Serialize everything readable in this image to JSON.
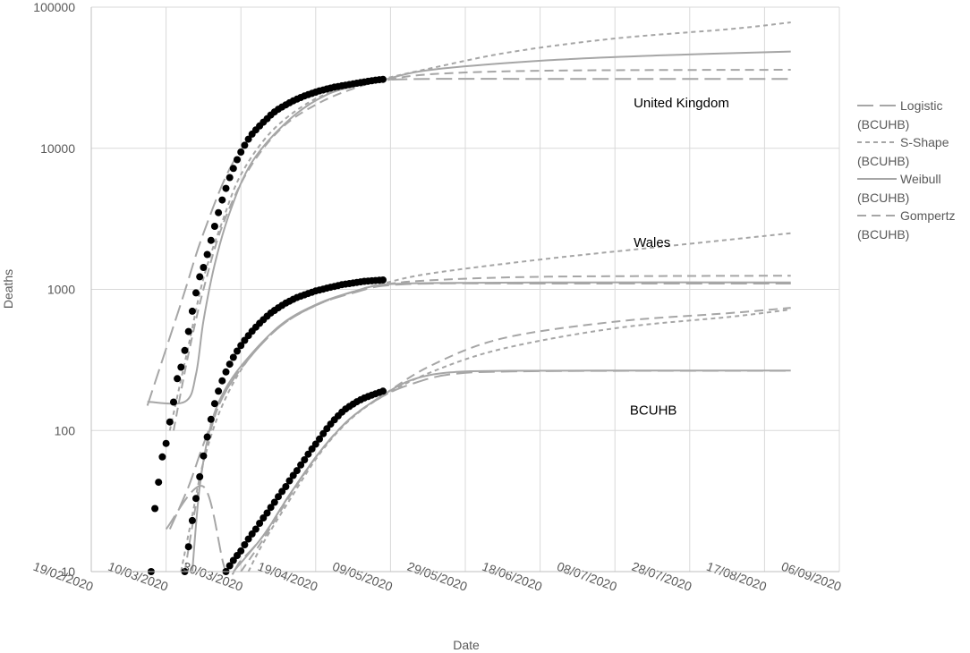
{
  "chart_data": {
    "type": "line",
    "xlabel": "Date",
    "ylabel": "Deaths",
    "yscale": "log",
    "ylim": [
      10,
      100000
    ],
    "xlim": [
      "19/02/2020",
      "06/09/2020"
    ],
    "x_ticks": [
      "19/02/2020",
      "10/03/2020",
      "30/03/2020",
      "19/04/2020",
      "09/05/2020",
      "29/05/2020",
      "18/06/2020",
      "08/07/2020",
      "28/07/2020",
      "17/08/2020",
      "06/09/2020"
    ],
    "y_ticks": [
      "10",
      "100",
      "1000",
      "10000",
      "100000"
    ],
    "grid": true,
    "legend_position": "right",
    "legend": [
      {
        "label": "Logistic",
        "sub": "(BCUHB)",
        "style": "long-dash"
      },
      {
        "label": "S-Shape",
        "sub": "(BCUHB)",
        "style": "short-dash"
      },
      {
        "label": "Weibull",
        "sub": "(BCUHB)",
        "style": "solid"
      },
      {
        "label": "Gompertz",
        "sub": "(BCUHB)",
        "style": "dash"
      }
    ],
    "annotations": [
      {
        "text": "United Kingdom",
        "x": "13/07/2020",
        "y": 19500
      },
      {
        "text": "Wales",
        "x": "13/07/2020",
        "y": 2000
      },
      {
        "text": "BCUHB",
        "x": "12/07/2020",
        "y": 130
      }
    ],
    "observed": [
      {
        "group": "United Kingdom",
        "start": "06/03/2020",
        "end": "07/05/2020",
        "values": [
          10,
          28,
          43,
          65,
          81,
          115,
          159,
          233,
          281,
          369,
          503,
          700,
          944,
          1228,
          1430,
          1768,
          2224,
          2800,
          3500,
          4300,
          5200,
          6200,
          7200,
          8300,
          9400,
          10500,
          11600,
          12600,
          13500,
          14400,
          15300,
          16200,
          17200,
          18100,
          18900,
          19600,
          20300,
          21000,
          21700,
          22300,
          22900,
          23500,
          24000,
          24500,
          25000,
          25500,
          25900,
          26300,
          26700,
          27100,
          27400,
          27700,
          28000,
          28300,
          28600,
          28900,
          29200,
          29500,
          29800,
          30100,
          30400,
          30600,
          30800
        ]
      },
      {
        "group": "Wales",
        "start": "15/03/2020",
        "end": "07/05/2020",
        "values": [
          10,
          15,
          23,
          33,
          47,
          66,
          90,
          120,
          155,
          190,
          225,
          260,
          295,
          330,
          365,
          400,
          435,
          470,
          505,
          540,
          575,
          610,
          645,
          680,
          710,
          740,
          770,
          800,
          825,
          850,
          875,
          895,
          915,
          935,
          955,
          975,
          990,
          1005,
          1020,
          1035,
          1050,
          1065,
          1080,
          1090,
          1100,
          1110,
          1120,
          1130,
          1140,
          1145,
          1150,
          1155,
          1160,
          1165
        ]
      },
      {
        "group": "BCUHB",
        "start": "26/03/2020",
        "end": "07/05/2020",
        "values": [
          10,
          11,
          12,
          13,
          14,
          15.5,
          17,
          18.5,
          20,
          22,
          24,
          26,
          28.5,
          31,
          34,
          37,
          40,
          44,
          48,
          52,
          57,
          62,
          68,
          74,
          80,
          87,
          95,
          103,
          111,
          119,
          127,
          135,
          142,
          148,
          154,
          160,
          165,
          170,
          174,
          178,
          182,
          186,
          190
        ]
      }
    ],
    "fits": {
      "United Kingdom": {
        "Logistic": [
          [
            "05/03/2020",
            150
          ],
          [
            "14/03/2020",
            800
          ],
          [
            "20/03/2020",
            2500
          ],
          [
            "28/03/2020",
            8000
          ],
          [
            "07/04/2020",
            17000
          ],
          [
            "17/04/2020",
            25000
          ],
          [
            "27/04/2020",
            29000
          ],
          [
            "07/05/2020",
            30500
          ],
          [
            "20/05/2020",
            31000
          ],
          [
            "20/06/2020",
            31000
          ],
          [
            "24/08/2020",
            31000
          ]
        ],
        "S-Shape": [
          [
            "11/03/2020",
            100
          ],
          [
            "16/03/2020",
            400
          ],
          [
            "20/03/2020",
            1200
          ],
          [
            "25/03/2020",
            3000
          ],
          [
            "30/03/2020",
            6500
          ],
          [
            "07/04/2020",
            13000
          ],
          [
            "17/04/2020",
            21000
          ],
          [
            "27/04/2020",
            27000
          ],
          [
            "07/05/2020",
            31000
          ],
          [
            "20/05/2020",
            37000
          ],
          [
            "10/06/2020",
            48000
          ],
          [
            "08/07/2020",
            60000
          ],
          [
            "08/08/2020",
            70000
          ],
          [
            "24/08/2020",
            78000
          ]
        ],
        "Weibull": [
          [
            "05/03/2020",
            160
          ],
          [
            "15/03/2020",
            160
          ],
          [
            "18/03/2020",
            250
          ],
          [
            "20/03/2020",
            600
          ],
          [
            "23/03/2020",
            1500
          ],
          [
            "27/03/2020",
            3500
          ],
          [
            "02/04/2020",
            8000
          ],
          [
            "12/04/2020",
            16000
          ],
          [
            "22/04/2020",
            24000
          ],
          [
            "02/05/2020",
            28500
          ],
          [
            "07/05/2020",
            30500
          ],
          [
            "20/05/2020",
            36000
          ],
          [
            "20/06/2020",
            42000
          ],
          [
            "20/07/2020",
            45500
          ],
          [
            "24/08/2020",
            48500
          ]
        ],
        "Gompertz": [
          [
            "12/03/2020",
            100
          ],
          [
            "16/03/2020",
            350
          ],
          [
            "20/03/2020",
            1000
          ],
          [
            "25/03/2020",
            2800
          ],
          [
            "01/04/2020",
            7000
          ],
          [
            "10/04/2020",
            14000
          ],
          [
            "20/04/2020",
            21000
          ],
          [
            "30/04/2020",
            27000
          ],
          [
            "07/05/2020",
            30000
          ],
          [
            "20/05/2020",
            33500
          ],
          [
            "20/06/2020",
            35500
          ],
          [
            "24/08/2020",
            36000
          ]
        ]
      },
      "Wales": {
        "Logistic": [
          [
            "11/03/2020",
            20
          ],
          [
            "16/03/2020",
            40
          ],
          [
            "20/03/2020",
            80
          ],
          [
            "25/03/2020",
            170
          ],
          [
            "01/04/2020",
            320
          ],
          [
            "10/04/2020",
            560
          ],
          [
            "20/04/2020",
            790
          ],
          [
            "30/04/2020",
            960
          ],
          [
            "07/05/2020",
            1060
          ],
          [
            "20/05/2020",
            1100
          ],
          [
            "20/06/2020",
            1100
          ],
          [
            "24/08/2020",
            1100
          ]
        ],
        "S-Shape": [
          [
            "14/03/2020",
            10
          ],
          [
            "17/03/2020",
            25
          ],
          [
            "20/03/2020",
            60
          ],
          [
            "25/03/2020",
            150
          ],
          [
            "01/04/2020",
            320
          ],
          [
            "10/04/2020",
            560
          ],
          [
            "20/04/2020",
            790
          ],
          [
            "30/04/2020",
            980
          ],
          [
            "07/05/2020",
            1100
          ],
          [
            "20/05/2020",
            1300
          ],
          [
            "20/06/2020",
            1650
          ],
          [
            "20/07/2020",
            2000
          ],
          [
            "24/08/2020",
            2500
          ]
        ],
        "Weibull": [
          [
            "17/03/2020",
            10
          ],
          [
            "19/03/2020",
            40
          ],
          [
            "22/03/2020",
            110
          ],
          [
            "26/03/2020",
            200
          ],
          [
            "01/04/2020",
            330
          ],
          [
            "10/04/2020",
            570
          ],
          [
            "20/04/2020",
            800
          ],
          [
            "30/04/2020",
            980
          ],
          [
            "07/05/2020",
            1080
          ],
          [
            "20/05/2020",
            1110
          ],
          [
            "20/06/2020",
            1120
          ],
          [
            "24/08/2020",
            1120
          ]
        ],
        "Gompertz": [
          [
            "15/03/2020",
            10
          ],
          [
            "18/03/2020",
            30
          ],
          [
            "21/03/2020",
            80
          ],
          [
            "25/03/2020",
            170
          ],
          [
            "01/04/2020",
            320
          ],
          [
            "10/04/2020",
            560
          ],
          [
            "20/04/2020",
            790
          ],
          [
            "30/04/2020",
            980
          ],
          [
            "07/05/2020",
            1080
          ],
          [
            "20/05/2020",
            1160
          ],
          [
            "20/06/2020",
            1230
          ],
          [
            "24/08/2020",
            1250
          ]
        ]
      },
      "BCUHB": {
        "Logistic": [
          [
            "10/03/2020",
            20
          ],
          [
            "20/03/2020",
            40
          ],
          [
            "26/03/2020",
            10
          ],
          [
            "30/03/2020",
            12
          ],
          [
            "05/04/2020",
            18
          ],
          [
            "12/04/2020",
            35
          ],
          [
            "20/04/2020",
            70
          ],
          [
            "28/04/2020",
            120
          ],
          [
            "07/05/2020",
            175
          ],
          [
            "15/05/2020",
            215
          ],
          [
            "25/05/2020",
            250
          ],
          [
            "10/06/2020",
            262
          ],
          [
            "20/07/2020",
            265
          ],
          [
            "24/08/2020",
            265
          ]
        ],
        "S-Shape": [
          [
            "01/04/2020",
            10
          ],
          [
            "05/04/2020",
            16
          ],
          [
            "12/04/2020",
            32
          ],
          [
            "20/04/2020",
            68
          ],
          [
            "28/04/2020",
            118
          ],
          [
            "07/05/2020",
            175
          ],
          [
            "20/05/2020",
            260
          ],
          [
            "08/06/2020",
            380
          ],
          [
            "08/07/2020",
            530
          ],
          [
            "08/08/2020",
            640
          ],
          [
            "24/08/2020",
            720
          ]
        ],
        "Weibull": [
          [
            "28/03/2020",
            10
          ],
          [
            "05/04/2020",
            18
          ],
          [
            "12/04/2020",
            35
          ],
          [
            "20/04/2020",
            70
          ],
          [
            "28/04/2020",
            120
          ],
          [
            "07/05/2020",
            178
          ],
          [
            "15/05/2020",
            230
          ],
          [
            "25/05/2020",
            258
          ],
          [
            "10/06/2020",
            265
          ],
          [
            "20/07/2020",
            266
          ],
          [
            "24/08/2020",
            266
          ]
        ],
        "Gompertz": [
          [
            "30/03/2020",
            10
          ],
          [
            "05/04/2020",
            17
          ],
          [
            "12/04/2020",
            34
          ],
          [
            "20/04/2020",
            70
          ],
          [
            "28/04/2020",
            120
          ],
          [
            "07/05/2020",
            178
          ],
          [
            "20/05/2020",
            290
          ],
          [
            "08/06/2020",
            450
          ],
          [
            "08/07/2020",
            590
          ],
          [
            "08/08/2020",
            680
          ],
          [
            "24/08/2020",
            740
          ]
        ]
      }
    },
    "colors": {
      "observed": "#000000",
      "fit": "#a6a6a6",
      "grid": "#d9d9d9",
      "axis": "#bfbfbf",
      "text": "#595959"
    }
  }
}
